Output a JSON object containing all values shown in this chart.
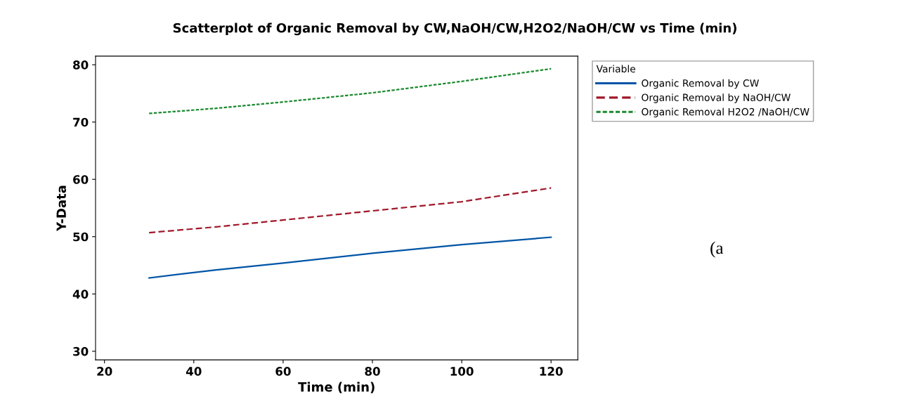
{
  "chart_data": {
    "type": "line",
    "title": "Scatterplot of Organic Removal by CW,NaOH/CW,H2O2/NaOH/CW vs Time (min)",
    "xlabel": "Time (min)",
    "ylabel": "Y-Data",
    "legend_title": "Variable",
    "legend": "right",
    "x": [
      30,
      45,
      60,
      80,
      100,
      120
    ],
    "series": [
      {
        "name": "Organic Removal by CW",
        "color": "#0054a6",
        "line_style": "solid",
        "values": [
          42.8,
          44.2,
          45.4,
          47.1,
          48.6,
          49.9
        ]
      },
      {
        "name": "Organic Removal by NaOH/CW",
        "color": "#a0182a",
        "line_style": "dashed",
        "values": [
          50.7,
          51.7,
          52.9,
          54.5,
          56.1,
          58.5
        ]
      },
      {
        "name": "Organic Removal H2O2 /NaOH/CW",
        "color": "#1a8a2e",
        "line_style": "dotted",
        "values": [
          71.5,
          72.4,
          73.5,
          75.1,
          77.1,
          79.3
        ]
      }
    ],
    "xlim": [
      18,
      126
    ],
    "ylim": [
      28.5,
      81.5
    ],
    "xticks": [
      20,
      40,
      60,
      80,
      100,
      120
    ],
    "yticks": [
      30,
      40,
      50,
      60,
      70,
      80
    ],
    "grid": false,
    "annotations": [
      "(a"
    ]
  }
}
